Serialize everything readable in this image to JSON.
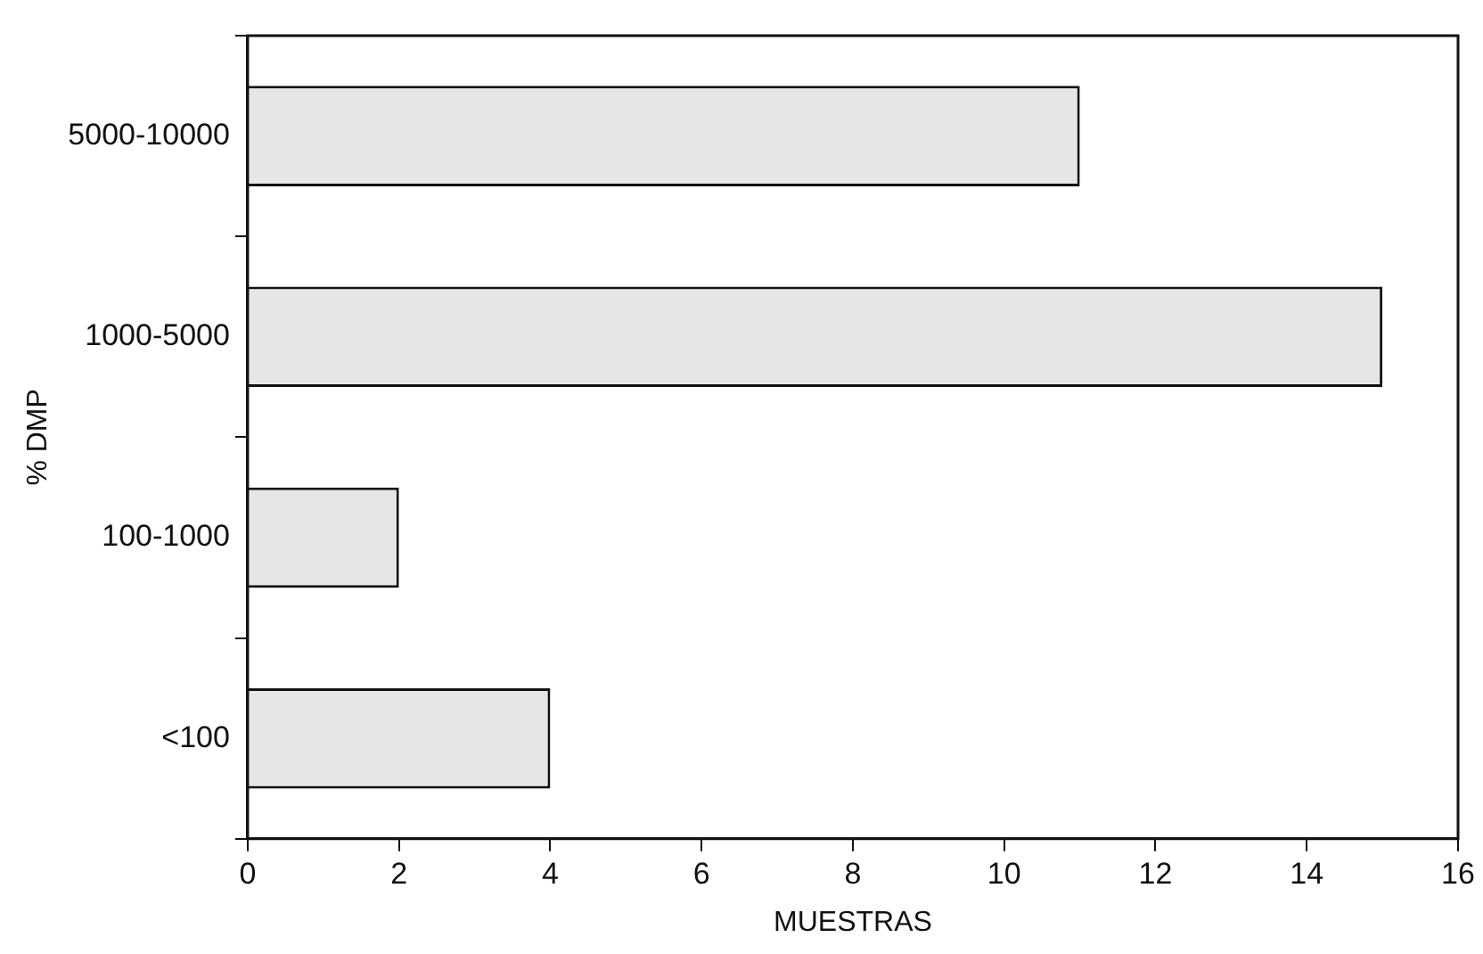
{
  "chart_data": {
    "type": "bar",
    "orientation": "horizontal",
    "xlabel": "MUESTRAS",
    "ylabel": "% DMP",
    "categories": [
      "5000-10000",
      "1000-5000",
      "100-1000",
      "<100"
    ],
    "values": [
      11,
      15,
      2,
      4
    ],
    "color": "#e6e6e6",
    "xlim": [
      0,
      16
    ],
    "xticks": [
      0,
      2,
      4,
      6,
      8,
      10,
      12,
      14,
      16
    ],
    "grid": false,
    "legend": false
  }
}
